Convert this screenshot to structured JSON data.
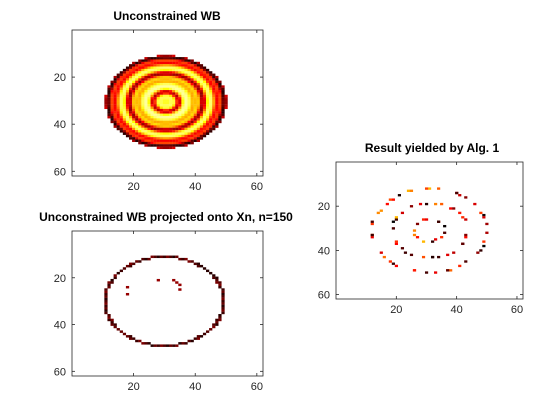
{
  "chart_data": [
    {
      "type": "heatmap",
      "title": "Unconstrained WB",
      "xlim": [
        0,
        62
      ],
      "ylim": [
        0,
        62
      ],
      "y_reversed": true,
      "xticks": [
        20,
        40,
        60
      ],
      "yticks": [
        20,
        40,
        60
      ],
      "grid": false,
      "colormap": "hot (reversed)",
      "content": "filled disk centered ~(30,30) radius ~19, concentric rings at radii ~19, ~12 and ~4 (peaks dark red/orange), pale yellow fill"
    },
    {
      "type": "heatmap",
      "title": "Unconstrained WB projected onto Xn, n=150",
      "xlim": [
        0,
        62
      ],
      "ylim": [
        0,
        62
      ],
      "y_reversed": true,
      "xticks": [
        20,
        40,
        60
      ],
      "yticks": [
        20,
        40,
        60
      ],
      "grid": false,
      "colormap": "hot (reversed)",
      "content": "dark red outer ring radius ~19 centered ~(30,30) plus a few inner pixels"
    },
    {
      "type": "heatmap",
      "title": "Result yielded by   Alg. 1",
      "xlim": [
        0,
        62
      ],
      "ylim": [
        0,
        62
      ],
      "y_reversed": true,
      "xticks": [
        20,
        40,
        60
      ],
      "yticks": [
        20,
        40,
        60
      ],
      "grid": false,
      "colormap": "hot (reversed)",
      "content": "sparse scattered pixels along concentric circles of radius ~19, ~12 and ~5 centered ~(31,31)"
    }
  ]
}
